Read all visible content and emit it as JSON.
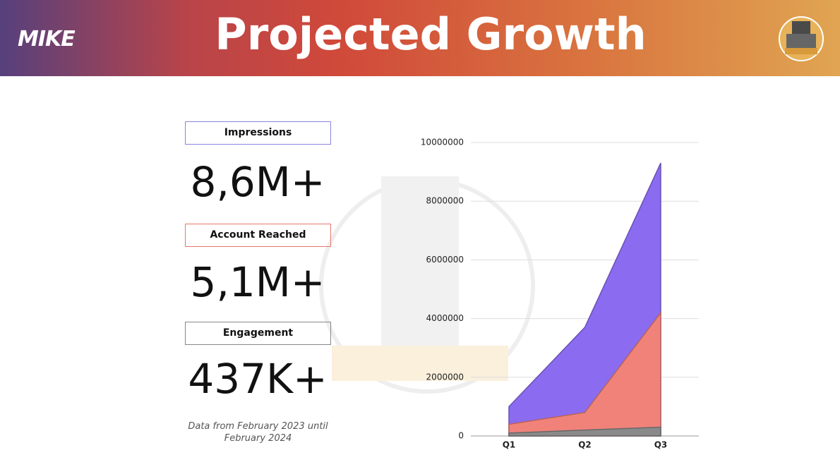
{
  "header": {
    "name": "MIKE",
    "title": "Projected Growth"
  },
  "stats": [
    {
      "label": "Impressions",
      "value": "8,6M+"
    },
    {
      "label": "Account Reached",
      "value": "5,1M+"
    },
    {
      "label": "Engagement",
      "value": "437K+"
    }
  ],
  "note": "Data from February 2023 until February 2024",
  "chart_data": {
    "type": "area",
    "categories": [
      "Q1",
      "Q2",
      "Q3"
    ],
    "series": [
      {
        "color": "#8b6cf0",
        "values": [
          1000000,
          3700000,
          9300000
        ]
      },
      {
        "color": "#f0827a",
        "values": [
          400000,
          800000,
          4200000
        ]
      },
      {
        "color": "#8a8a8a",
        "values": [
          100000,
          200000,
          300000
        ]
      }
    ],
    "ylim": [
      0,
      10000000
    ],
    "yticks": [
      0,
      2000000,
      4000000,
      6000000,
      8000000,
      10000000
    ],
    "grid": true
  }
}
